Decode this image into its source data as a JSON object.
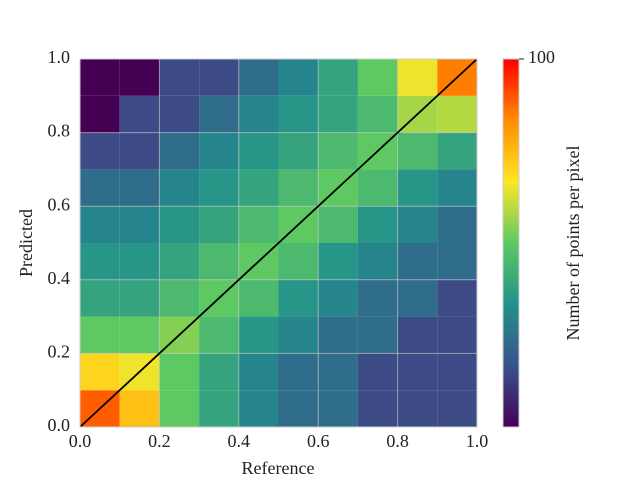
{
  "chart_data": {
    "type": "density",
    "xlabel": "Reference",
    "ylabel": "Predicted",
    "xlim": [
      0,
      1
    ],
    "ylim": [
      0,
      1
    ],
    "xticks": [
      {
        "value": 0,
        "label": "0.0"
      },
      0.2,
      0.4,
      0.6,
      0.8,
      {
        "value": 1,
        "label": "1.0"
      }
    ],
    "yticks": [
      {
        "value": 0,
        "label": "0.0"
      },
      0.2,
      0.4,
      0.6,
      0.8,
      {
        "value": 1,
        "label": "1.0"
      }
    ],
    "grid": true,
    "bins_x": [
      0,
      0.1,
      0.2,
      0.3,
      0.4,
      0.5,
      0.6,
      0.7,
      0.8,
      0.9,
      1
    ],
    "bins_y": [
      0,
      0.1,
      0.2,
      0.3,
      0.4,
      0.5,
      0.6,
      0.7,
      0.8,
      0.9,
      1
    ],
    "z": [
      [
        60,
        30,
        10,
        6,
        4,
        3,
        3,
        2,
        2,
        2
      ],
      [
        25,
        20,
        10,
        6,
        4,
        3,
        3,
        2,
        2,
        2
      ],
      [
        10,
        10,
        12,
        8,
        5,
        4,
        3,
        3,
        2,
        2
      ],
      [
        6,
        6,
        8,
        10,
        8,
        5,
        4,
        3,
        3,
        2
      ],
      [
        5,
        5,
        6,
        8,
        10,
        8,
        5,
        4,
        3,
        3
      ],
      [
        4,
        4,
        5,
        6,
        8,
        10,
        8,
        5,
        4,
        3
      ],
      [
        3,
        3,
        4,
        5,
        6,
        8,
        10,
        8,
        5,
        4
      ],
      [
        2,
        2,
        3,
        4,
        5,
        6,
        8,
        10,
        8,
        6
      ],
      [
        1,
        2,
        2,
        3,
        4,
        5,
        6,
        8,
        14,
        15
      ],
      [
        1,
        1,
        2,
        2,
        3,
        4,
        6,
        10,
        20,
        50
      ]
    ],
    "colorbar": {
      "label": "Number of points per pixel",
      "lim": [
        1,
        100
      ],
      "ticks": [
        100
      ],
      "log": true,
      "colormap": [
        "#440154",
        "#3b528b",
        "#21918c",
        "#5ec962",
        "#fde725",
        "#ff8c00",
        "#ff0000"
      ]
    },
    "lines": [
      {
        "x": [
          0,
          1
        ],
        "y": [
          0,
          1
        ],
        "color": "#000000"
      }
    ]
  }
}
